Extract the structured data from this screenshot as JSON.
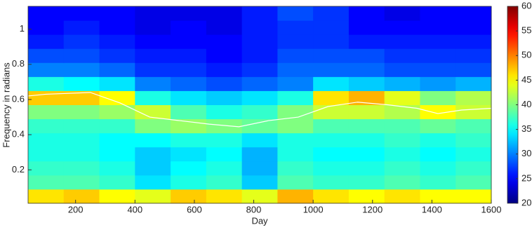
{
  "chart_data": {
    "type": "heatmap",
    "xlabel": "Day",
    "ylabel": "Frequency in radians",
    "xbins": [
      40,
      160,
      280,
      400,
      520,
      640,
      760,
      880,
      1000,
      1120,
      1240,
      1360,
      1480,
      1600
    ],
    "ybins": [
      0.01,
      0.09,
      0.17,
      0.25,
      0.33,
      0.41,
      0.49,
      0.57,
      0.65,
      0.73,
      0.81,
      0.89,
      0.97,
      1.05,
      1.13
    ],
    "values": [
      [
        46,
        47,
        45,
        44,
        47,
        46,
        44,
        48,
        46,
        45,
        46,
        45,
        45
      ],
      [
        38,
        38,
        37,
        34,
        36,
        37,
        33,
        38,
        37,
        37,
        38,
        37,
        38
      ],
      [
        37,
        37,
        36,
        33,
        35,
        36,
        32,
        37,
        36,
        36,
        37,
        36,
        37
      ],
      [
        36,
        36,
        35,
        33,
        34,
        35,
        32,
        36,
        35,
        35,
        36,
        35,
        36
      ],
      [
        36,
        36,
        35,
        35,
        36,
        36,
        34,
        36,
        36,
        36,
        37,
        36,
        37
      ],
      [
        37,
        37,
        37,
        40,
        41,
        40,
        39,
        40,
        38,
        38,
        38,
        39,
        38
      ],
      [
        40,
        40,
        41,
        43,
        38,
        36,
        37,
        40,
        43,
        43,
        42,
        45,
        43
      ],
      [
        47,
        47,
        45,
        36,
        34,
        33,
        34,
        36,
        46,
        48,
        44,
        40,
        42
      ],
      [
        36,
        35,
        34,
        30,
        29,
        28,
        29,
        30,
        34,
        33,
        32,
        31,
        32
      ],
      [
        30,
        30,
        29,
        27,
        27,
        26,
        27,
        29,
        29,
        29,
        28,
        28,
        28
      ],
      [
        28,
        28,
        27,
        26,
        26,
        25,
        26,
        28,
        28,
        28,
        27,
        27,
        27
      ],
      [
        26,
        27,
        26,
        25,
        25,
        25,
        26,
        27,
        27,
        26,
        26,
        26,
        26
      ],
      [
        25,
        26,
        25,
        24,
        25,
        24,
        26,
        27,
        27,
        25,
        25,
        25,
        25
      ],
      [
        25,
        25,
        25,
        24,
        24,
        24,
        26,
        28,
        27,
        25,
        24,
        25,
        25
      ]
    ],
    "series": [
      {
        "color": "#ffffff",
        "x": [
          40,
          100,
          250,
          350,
          450,
          550,
          650,
          750,
          850,
          950,
          1050,
          1150,
          1250,
          1350,
          1420,
          1500,
          1600
        ],
        "values": [
          0.62,
          0.63,
          0.64,
          0.58,
          0.5,
          0.48,
          0.46,
          0.445,
          0.48,
          0.5,
          0.56,
          0.585,
          0.57,
          0.55,
          0.52,
          0.54,
          0.55
        ]
      }
    ],
    "xlim": [
      40,
      1600
    ],
    "xticks": [
      200,
      400,
      600,
      800,
      1000,
      1200,
      1400,
      1600
    ],
    "ylim": [
      0.01,
      1.13
    ],
    "yticks": [
      0.2,
      0.4,
      0.6,
      0.8,
      1
    ],
    "colormap": "jet",
    "clim": [
      20,
      60
    ],
    "cticks": [
      20,
      25,
      30,
      35,
      40,
      45,
      50,
      55,
      60
    ]
  }
}
